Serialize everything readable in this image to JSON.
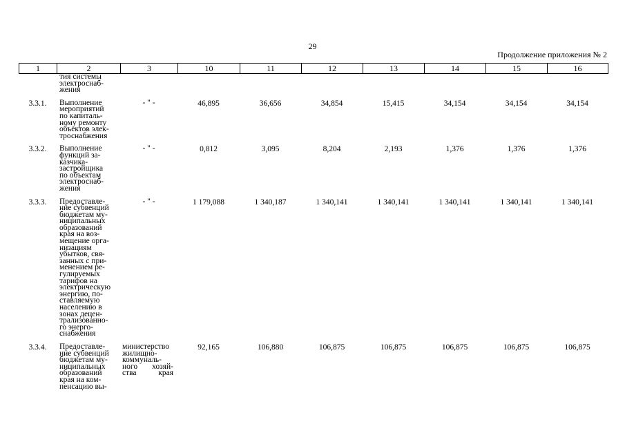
{
  "page_number": "29",
  "continuation_label": "Продолжение приложения № 2",
  "columns": [
    "1",
    "2",
    "3",
    "10",
    "11",
    "12",
    "13",
    "14",
    "15",
    "16"
  ],
  "rows": [
    {
      "num": "",
      "name_lines": [
        "тия системы",
        "электроснаб-",
        "жения"
      ],
      "executor_lines": [],
      "values": [
        "",
        "",
        "",
        "",
        "",
        "",
        ""
      ]
    },
    {
      "num": "3.3.1.",
      "name_lines": [
        "Выполнение",
        "мероприятий",
        "по капиталь-",
        "ному ремонту",
        "объектов элек-",
        "троснабжения"
      ],
      "executor_lines": [
        "- \" -"
      ],
      "values": [
        "46,895",
        "36,656",
        "34,854",
        "15,415",
        "34,154",
        "34,154",
        "34,154"
      ]
    },
    {
      "num": "3.3.2.",
      "name_lines": [
        "Выполнение",
        "функций за-",
        "казчика-",
        "застройщика",
        "по объектам",
        "электроснаб-",
        "жения"
      ],
      "executor_lines": [
        "- \" -"
      ],
      "values": [
        "0,812",
        "3,095",
        "8,204",
        "2,193",
        "1,376",
        "1,376",
        "1,376"
      ]
    },
    {
      "num": "3.3.3.",
      "name_lines": [
        "Предоставле-",
        "ние субвенций",
        "бюджетам му-",
        "ниципальных",
        "образований",
        "края на воз-",
        "мещение орга-",
        "низациям",
        "убытков, свя-",
        "занных с при-",
        "менением ре-",
        "гулируемых",
        "тарифов на",
        "электрическую",
        "энергию, по-",
        "ставляемую",
        "населению в",
        "зонах децен-",
        "трализованно-",
        "го энерго-",
        "снабжения"
      ],
      "executor_lines": [
        "- \" -"
      ],
      "values": [
        "1 179,088",
        "1 340,187",
        "1 340,141",
        "1 340,141",
        "1 340,141",
        "1 340,141",
        "1 340,141"
      ]
    },
    {
      "num": "3.3.4.",
      "name_lines": [
        "Предоставле-",
        "ние субвенций",
        "бюджетам му-",
        "ниципальных",
        "образований",
        "края на ком-",
        "пенсацию вы-"
      ],
      "executor_lines": [
        "министерство",
        "жилищно-",
        "коммуналь-",
        "ного хозяй-",
        "ства края"
      ],
      "values": [
        "92,165",
        "106,880",
        "106,875",
        "106,875",
        "106,875",
        "106,875",
        "106,875"
      ]
    }
  ]
}
